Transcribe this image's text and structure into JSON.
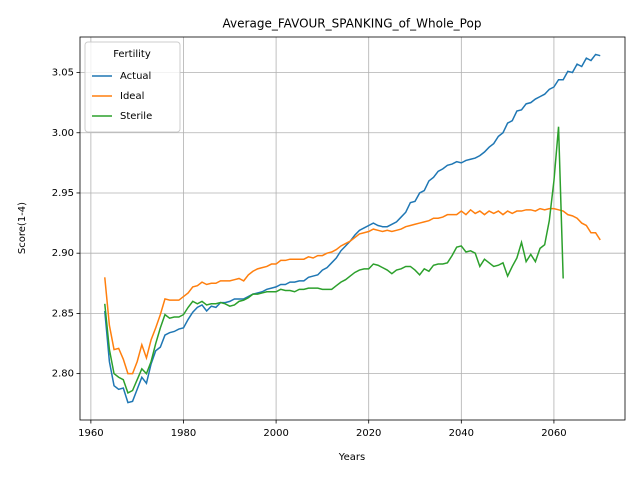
{
  "chart_data": {
    "type": "line",
    "title": "Average_FAVOUR_SPANKING_of_Whole_Pop",
    "x_label": "Years",
    "y_label": "Score(1-4)",
    "x": [
      1963,
      1964,
      1965,
      1966,
      1967,
      1968,
      1969,
      1970,
      1971,
      1972,
      1973,
      1974,
      1975,
      1976,
      1977,
      1978,
      1979,
      1980,
      1981,
      1982,
      1983,
      1984,
      1985,
      1986,
      1987,
      1988,
      1989,
      1990,
      1991,
      1992,
      1993,
      1994,
      1995,
      1996,
      1997,
      1998,
      1999,
      2000,
      2001,
      2002,
      2003,
      2004,
      2005,
      2006,
      2007,
      2008,
      2009,
      2010,
      2011,
      2012,
      2013,
      2014,
      2015,
      2016,
      2017,
      2018,
      2019,
      2020,
      2021,
      2022,
      2023,
      2024,
      2025,
      2026,
      2027,
      2028,
      2029,
      2030,
      2031,
      2032,
      2033,
      2034,
      2035,
      2036,
      2037,
      2038,
      2039,
      2040,
      2041,
      2042,
      2043,
      2044,
      2045,
      2046,
      2047,
      2048,
      2049,
      2050,
      2051,
      2052,
      2053,
      2054,
      2055,
      2056,
      2057,
      2058,
      2059,
      2060,
      2061,
      2062,
      2063,
      2064,
      2065,
      2066,
      2067,
      2068,
      2069,
      2070
    ],
    "series": [
      {
        "name": "Actual",
        "color": "#1f77b4",
        "values": [
          2.852,
          2.81,
          2.79,
          2.787,
          2.788,
          2.776,
          2.777,
          2.787,
          2.797,
          2.792,
          2.808,
          2.819,
          2.822,
          2.832,
          2.834,
          2.835,
          2.837,
          2.838,
          2.845,
          2.851,
          2.855,
          2.857,
          2.852,
          2.856,
          2.855,
          2.859,
          2.859,
          2.86,
          2.862,
          2.862,
          2.862,
          2.864,
          2.866,
          2.867,
          2.868,
          2.87,
          2.871,
          2.872,
          2.874,
          2.874,
          2.876,
          2.876,
          2.877,
          2.877,
          2.88,
          2.881,
          2.882,
          2.886,
          2.888,
          2.892,
          2.896,
          2.902,
          2.906,
          2.91,
          2.915,
          2.919,
          2.921,
          2.923,
          2.925,
          2.923,
          2.922,
          2.922,
          2.924,
          2.926,
          2.93,
          2.934,
          2.942,
          2.943,
          2.95,
          2.952,
          2.96,
          2.963,
          2.968,
          2.97,
          2.973,
          2.974,
          2.976,
          2.975,
          2.977,
          2.978,
          2.979,
          2.981,
          2.984,
          2.988,
          2.991,
          2.997,
          3.0,
          3.008,
          3.01,
          3.018,
          3.019,
          3.024,
          3.025,
          3.028,
          3.03,
          3.032,
          3.036,
          3.038,
          3.044,
          3.044,
          3.051,
          3.05,
          3.057,
          3.055,
          3.062,
          3.06,
          3.065,
          3.064
        ]
      },
      {
        "name": "Ideal",
        "color": "#ff7f0e",
        "values": [
          2.88,
          2.84,
          2.82,
          2.821,
          2.812,
          2.8,
          2.8,
          2.81,
          2.824,
          2.813,
          2.828,
          2.838,
          2.849,
          2.862,
          2.861,
          2.861,
          2.861,
          2.864,
          2.867,
          2.872,
          2.873,
          2.876,
          2.874,
          2.875,
          2.875,
          2.877,
          2.877,
          2.877,
          2.878,
          2.879,
          2.877,
          2.882,
          2.885,
          2.887,
          2.888,
          2.889,
          2.891,
          2.891,
          2.894,
          2.894,
          2.895,
          2.895,
          2.895,
          2.895,
          2.897,
          2.896,
          2.898,
          2.898,
          2.9,
          2.901,
          2.903,
          2.906,
          2.908,
          2.91,
          2.913,
          2.916,
          2.917,
          2.918,
          2.92,
          2.919,
          2.918,
          2.919,
          2.918,
          2.919,
          2.92,
          2.922,
          2.923,
          2.924,
          2.925,
          2.926,
          2.927,
          2.929,
          2.929,
          2.93,
          2.932,
          2.932,
          2.932,
          2.935,
          2.932,
          2.936,
          2.933,
          2.935,
          2.932,
          2.935,
          2.933,
          2.935,
          2.932,
          2.935,
          2.933,
          2.935,
          2.935,
          2.936,
          2.936,
          2.935,
          2.937,
          2.936,
          2.937,
          2.937,
          2.936,
          2.935,
          2.932,
          2.931,
          2.929,
          2.925,
          2.923,
          2.917,
          2.917,
          2.911
        ]
      },
      {
        "name": "Sterile",
        "color": "#2ca02c",
        "values": [
          2.858,
          2.82,
          2.8,
          2.797,
          2.795,
          2.784,
          2.786,
          2.795,
          2.804,
          2.8,
          2.81,
          2.825,
          2.838,
          2.849,
          2.846,
          2.847,
          2.847,
          2.849,
          2.855,
          2.86,
          2.858,
          2.86,
          2.857,
          2.858,
          2.858,
          2.859,
          2.858,
          2.856,
          2.857,
          2.86,
          2.861,
          2.863,
          2.866,
          2.866,
          2.867,
          2.868,
          2.868,
          2.868,
          2.87,
          2.869,
          2.869,
          2.868,
          2.87,
          2.87,
          2.871,
          2.871,
          2.871,
          2.87,
          2.87,
          2.87,
          2.873,
          2.876,
          2.878,
          2.881,
          2.884,
          2.886,
          2.887,
          2.887,
          2.891,
          2.89,
          2.888,
          2.886,
          2.883,
          2.886,
          2.887,
          2.889,
          2.889,
          2.886,
          2.882,
          2.887,
          2.885,
          2.89,
          2.891,
          2.891,
          2.892,
          2.898,
          2.905,
          2.906,
          2.901,
          2.902,
          2.9,
          2.889,
          2.895,
          2.892,
          2.889,
          2.89,
          2.892,
          2.881,
          2.889,
          2.896,
          2.909,
          2.893,
          2.899,
          2.893,
          2.904,
          2.907,
          2.927,
          2.96,
          3.005,
          2.879,
          null,
          null,
          null,
          null,
          null,
          null,
          null,
          null
        ]
      }
    ],
    "xlim": [
      1957.65,
      2075.35
    ],
    "ylim": [
      2.7615,
      3.0795
    ],
    "xticks": [
      1960,
      1980,
      2000,
      2020,
      2040,
      2060
    ],
    "yticks": [
      {
        "value": 2.8,
        "label": "2.80"
      },
      2.85,
      {
        "value": 2.9,
        "label": "2.90"
      },
      2.95,
      {
        "value": 3.0,
        "label": "3.00"
      },
      3.05
    ],
    "grid": true,
    "legend_title": "Fertility",
    "legend_position": "upper left"
  }
}
